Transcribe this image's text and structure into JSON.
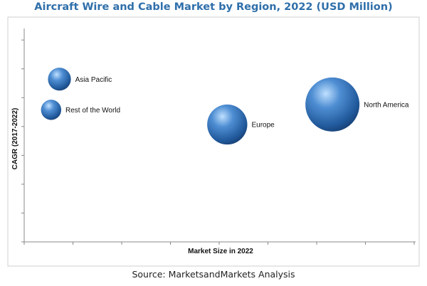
{
  "chart_data": {
    "type": "bubble",
    "title": "Aircraft Wire and Cable Market by Region, 2022 (USD Million)",
    "xlabel": "Market Size in 2022",
    "ylabel": "CAGR (2017-2022)",
    "xlim": [
      0,
      8
    ],
    "ylim": [
      0,
      8
    ],
    "grid": false,
    "points": [
      {
        "label": "Asia Pacific",
        "x": 0.72,
        "y": 6.1,
        "size": 0.18
      },
      {
        "label": "Rest of the World",
        "x": 0.55,
        "y": 4.95,
        "size": 0.14
      },
      {
        "label": "Europe",
        "x": 4.15,
        "y": 4.4,
        "size": 0.55
      },
      {
        "label": "North America",
        "x": 6.3,
        "y": 5.15,
        "size": 1.0
      }
    ]
  },
  "source": "Source: MarketsandMarkets Analysis"
}
